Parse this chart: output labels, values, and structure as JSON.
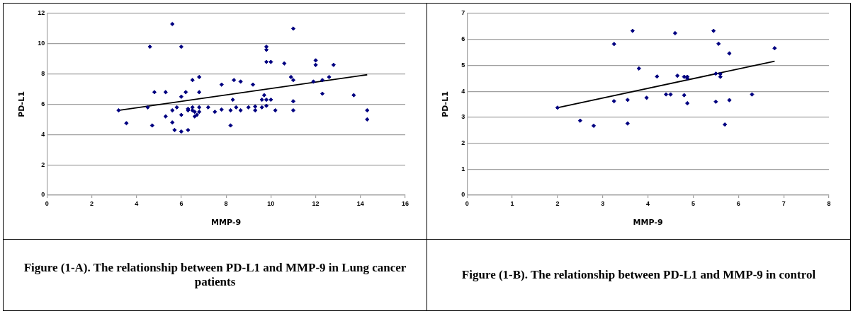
{
  "chart_data": [
    {
      "type": "scatter",
      "title": "Figure (1-A). The relationship between PD-L1 and MMP-9 in Lung cancer patients",
      "xlabel": "MMP-9",
      "ylabel": "PD-L1",
      "x": [
        3.2,
        3.55,
        4.5,
        4.6,
        4.7,
        4.8,
        5.3,
        5.3,
        5.6,
        5.6,
        5.6,
        5.7,
        5.8,
        6.0,
        6.0,
        6.0,
        6.0,
        6.2,
        6.3,
        6.3,
        6.3,
        6.5,
        6.5,
        6.5,
        6.6,
        6.6,
        6.7,
        6.8,
        6.8,
        6.8,
        6.8,
        7.2,
        7.5,
        7.8,
        7.8,
        8.2,
        8.2,
        8.3,
        8.35,
        8.45,
        8.65,
        8.65,
        9.0,
        9.2,
        9.3,
        9.3,
        9.6,
        9.6,
        9.7,
        9.8,
        9.8,
        9.8,
        9.8,
        9.8,
        10.0,
        10.0,
        10.2,
        10.6,
        10.9,
        11.0,
        11.0,
        11.0,
        11.0,
        11.9,
        12.0,
        12.0,
        12.3,
        12.3,
        12.6,
        12.8,
        13.7,
        14.3,
        14.3
      ],
      "series": [
        {
          "color": "#000080",
          "marker": "diamond",
          "values": [
            5.6,
            4.75,
            5.8,
            9.8,
            4.6,
            6.8,
            6.8,
            5.2,
            11.3,
            5.6,
            4.8,
            4.3,
            5.8,
            9.8,
            6.5,
            5.3,
            4.2,
            6.8,
            5.7,
            5.6,
            4.3,
            7.6,
            5.8,
            5.6,
            5.5,
            5.2,
            5.3,
            7.8,
            6.8,
            5.8,
            5.5,
            5.8,
            5.5,
            7.3,
            5.65,
            5.6,
            4.6,
            6.3,
            7.6,
            5.8,
            7.5,
            5.6,
            5.8,
            7.3,
            5.85,
            5.6,
            6.3,
            5.8,
            6.6,
            9.8,
            9.6,
            8.8,
            6.3,
            5.9,
            8.8,
            6.3,
            5.6,
            8.7,
            7.8,
            11.0,
            7.6,
            6.2,
            5.6,
            7.5,
            8.9,
            8.6,
            7.6,
            6.7,
            7.8,
            8.6,
            6.6,
            5.6,
            5.0
          ]
        },
        {
          "type": "line",
          "color": "#000000",
          "marker": "none",
          "x": [
            3.2,
            14.3
          ],
          "values": [
            5.6,
            7.95
          ]
        }
      ],
      "xlim": [
        0,
        16
      ],
      "xticks": [
        0,
        2,
        4,
        6,
        8,
        10,
        12,
        14,
        16
      ],
      "ylim": [
        0,
        12
      ],
      "yticks": [
        0,
        2,
        4,
        6,
        8,
        10,
        12
      ],
      "grid": "y",
      "legend": false
    },
    {
      "type": "scatter",
      "title": "Figure (1-B). The relationship between PD-L1 and MMP-9 in control",
      "xlabel": "MMP-9",
      "ylabel": "PD-L1",
      "x": [
        2.0,
        2.5,
        2.8,
        3.25,
        3.25,
        3.55,
        3.55,
        3.66,
        3.8,
        3.97,
        4.2,
        4.4,
        4.5,
        4.6,
        4.65,
        4.8,
        4.8,
        4.87,
        4.87,
        4.87,
        5.45,
        5.5,
        5.5,
        5.56,
        5.6,
        5.6,
        5.7,
        5.8,
        5.8,
        6.3,
        6.8
      ],
      "series": [
        {
          "color": "#000080",
          "marker": "diamond",
          "values": [
            3.37,
            2.87,
            2.67,
            3.62,
            5.82,
            2.76,
            3.67,
            6.33,
            4.88,
            3.75,
            4.57,
            3.88,
            3.88,
            6.24,
            4.6,
            4.56,
            3.85,
            4.56,
            4.5,
            3.54,
            6.33,
            4.68,
            3.6,
            5.83,
            4.67,
            4.56,
            2.72,
            5.46,
            3.66,
            3.88,
            5.66
          ]
        },
        {
          "type": "line",
          "color": "#000000",
          "marker": "none",
          "x": [
            2.0,
            6.8
          ],
          "values": [
            3.37,
            5.16
          ]
        }
      ],
      "xlim": [
        0,
        8
      ],
      "xticks": [
        0,
        1,
        2,
        3,
        4,
        5,
        6,
        7,
        8
      ],
      "ylim": [
        0,
        7
      ],
      "yticks": [
        0,
        1,
        2,
        3,
        4,
        5,
        6,
        7
      ],
      "grid": "y",
      "legend": false
    }
  ]
}
